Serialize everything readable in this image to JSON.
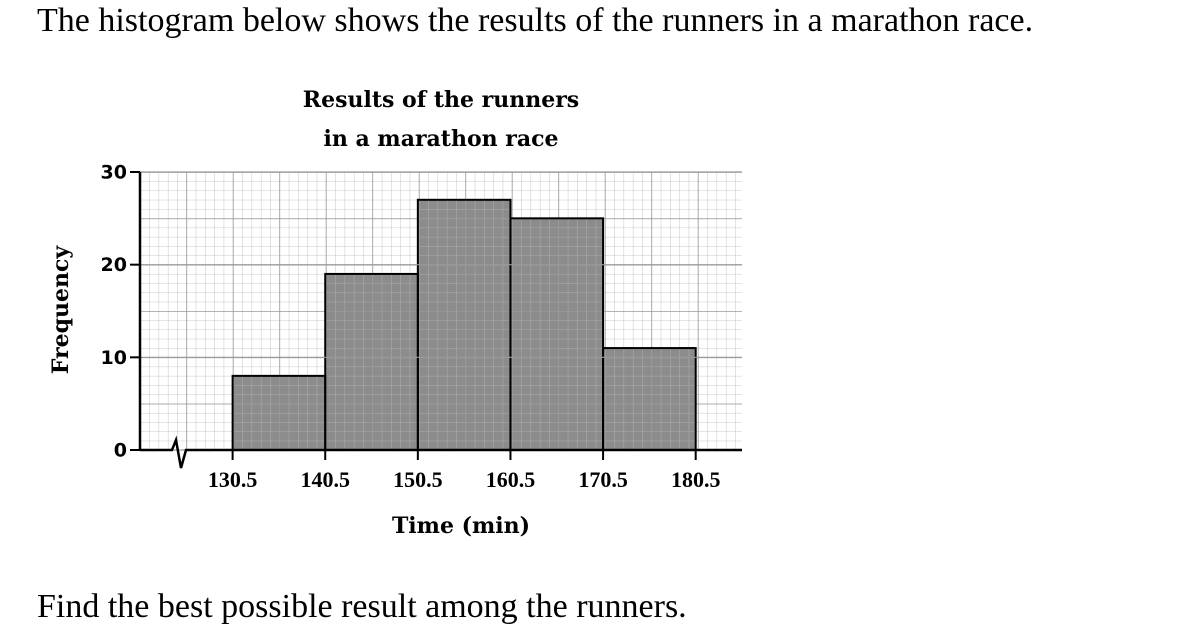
{
  "intro": "The histogram below shows the results of the runners in a marathon race.",
  "question": "Find the best possible result among the runners.",
  "chart_data": {
    "type": "histogram",
    "title": [
      "Results of the runners",
      "in a marathon race"
    ],
    "xlabel": "Time (min)",
    "ylabel": "Frequency",
    "bins": [
      130.5,
      140.5,
      150.5,
      160.5,
      170.5,
      180.5
    ],
    "counts": [
      8,
      19,
      27,
      25,
      11
    ],
    "color": "#8c8c8c",
    "xlim": [
      120.5,
      185.5
    ],
    "ylim": [
      0,
      30
    ],
    "xticks": [
      130.5,
      140.5,
      150.5,
      160.5,
      170.5,
      180.5
    ],
    "yticks": [
      0,
      10,
      20,
      30
    ],
    "grid": true
  }
}
